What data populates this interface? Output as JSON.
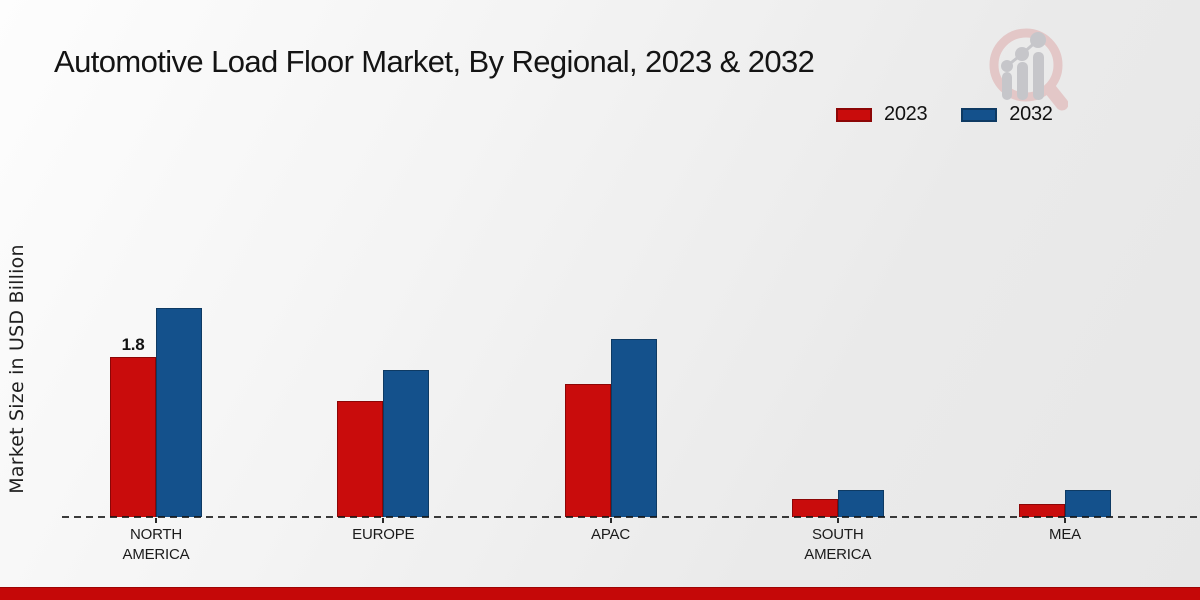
{
  "header": {
    "title": "Automotive Load Floor Market, By Regional, 2023 & 2032",
    "logo_icon": "magnifier-growth-chart-logo"
  },
  "chart_data": {
    "type": "bar",
    "title": "Automotive Load Floor Market, By Regional, 2023 & 2032",
    "xlabel": "",
    "ylabel": "Market Size in USD Billion",
    "units": "USD Billion",
    "categories": [
      "NORTH AMERICA",
      "EUROPE",
      "APAC",
      "SOUTH AMERICA",
      "MEA"
    ],
    "series": [
      {
        "name": "2023",
        "color": "#c90c0c",
        "border_color": "#8c0606",
        "values": [
          1.8,
          1.3,
          1.5,
          0.2,
          0.15
        ]
      },
      {
        "name": "2032",
        "color": "#14518c",
        "border_color": "#0e3a63",
        "values": [
          2.35,
          1.65,
          2.0,
          0.3,
          0.3
        ]
      }
    ],
    "annotations": [
      {
        "series_index": 0,
        "category_index": 0,
        "text": "1.8"
      }
    ],
    "legend_position": "top-right",
    "grid": false,
    "baseline_style": "dashed",
    "ylim": [
      0,
      4
    ]
  },
  "footer": {
    "accent_bar_color": "#c50808"
  }
}
